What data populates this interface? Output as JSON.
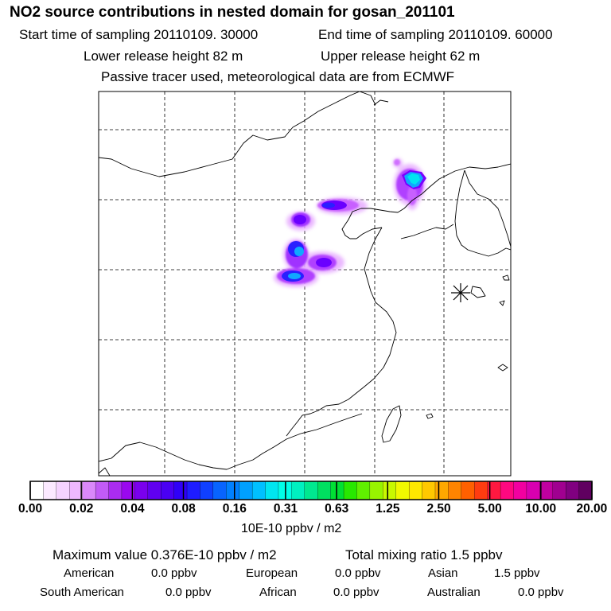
{
  "header": {
    "title": "NO2 source contributions in nested domain for gosan_201101",
    "start_time": "Start time of sampling 20110109. 30000",
    "end_time": "End time of sampling 20110109. 60000",
    "lower_release": "Lower release height   82 m",
    "upper_release": "Upper release height   62 m",
    "tracer_note": "Passive tracer used, meteorological data are from ECMWF"
  },
  "colorbar": {
    "unit_label": "10E-10 ppbv / m2",
    "tick_labels": [
      "0.00",
      "0.02",
      "0.04",
      "0.08",
      "0.16",
      "0.31",
      "0.63",
      "1.25",
      "2.50",
      "5.00",
      "10.00",
      "20.00"
    ],
    "colors": [
      "#ffffff",
      "#fbe9ff",
      "#f5d3ff",
      "#efb8ff",
      "#da88fa",
      "#c25bf6",
      "#aa2cf0",
      "#9a08ee",
      "#7a00ee",
      "#6000f0",
      "#4a00f3",
      "#3000f8",
      "#1e1cff",
      "#1040ff",
      "#0864ff",
      "#0080ff",
      "#00a0ff",
      "#00c0ff",
      "#00e6f0",
      "#00ffe8",
      "#00f0c0",
      "#00e890",
      "#00e060",
      "#00e034",
      "#28e800",
      "#60f000",
      "#98f400",
      "#c8f800",
      "#f0f800",
      "#ffe800",
      "#ffc800",
      "#ffa800",
      "#ff8400",
      "#ff6000",
      "#ff3c10",
      "#ff1840",
      "#ff0880",
      "#f200a0",
      "#d800b0",
      "#c000a0",
      "#a00090",
      "#800080",
      "#600060"
    ]
  },
  "map": {
    "receptor_marker": "receptor-asterisk",
    "plume_colors": [
      "#d070ff",
      "#8a00ff",
      "#2a20ff",
      "#10a8ff",
      "#00e6f0"
    ]
  },
  "footer": {
    "maximum": "Maximum value  0.376E-10 ppbv / m2",
    "total": "Total mixing ratio        1.5 ppbv",
    "regions": [
      {
        "name": "American",
        "value": "0.0 ppbv"
      },
      {
        "name": "European",
        "value": "0.0 ppbv"
      },
      {
        "name": "Asian",
        "value": "1.5 ppbv"
      },
      {
        "name": "South American",
        "value": "0.0 ppbv"
      },
      {
        "name": "African",
        "value": "0.0 ppbv"
      },
      {
        "name": "Australian",
        "value": "0.0 ppbv"
      }
    ]
  }
}
